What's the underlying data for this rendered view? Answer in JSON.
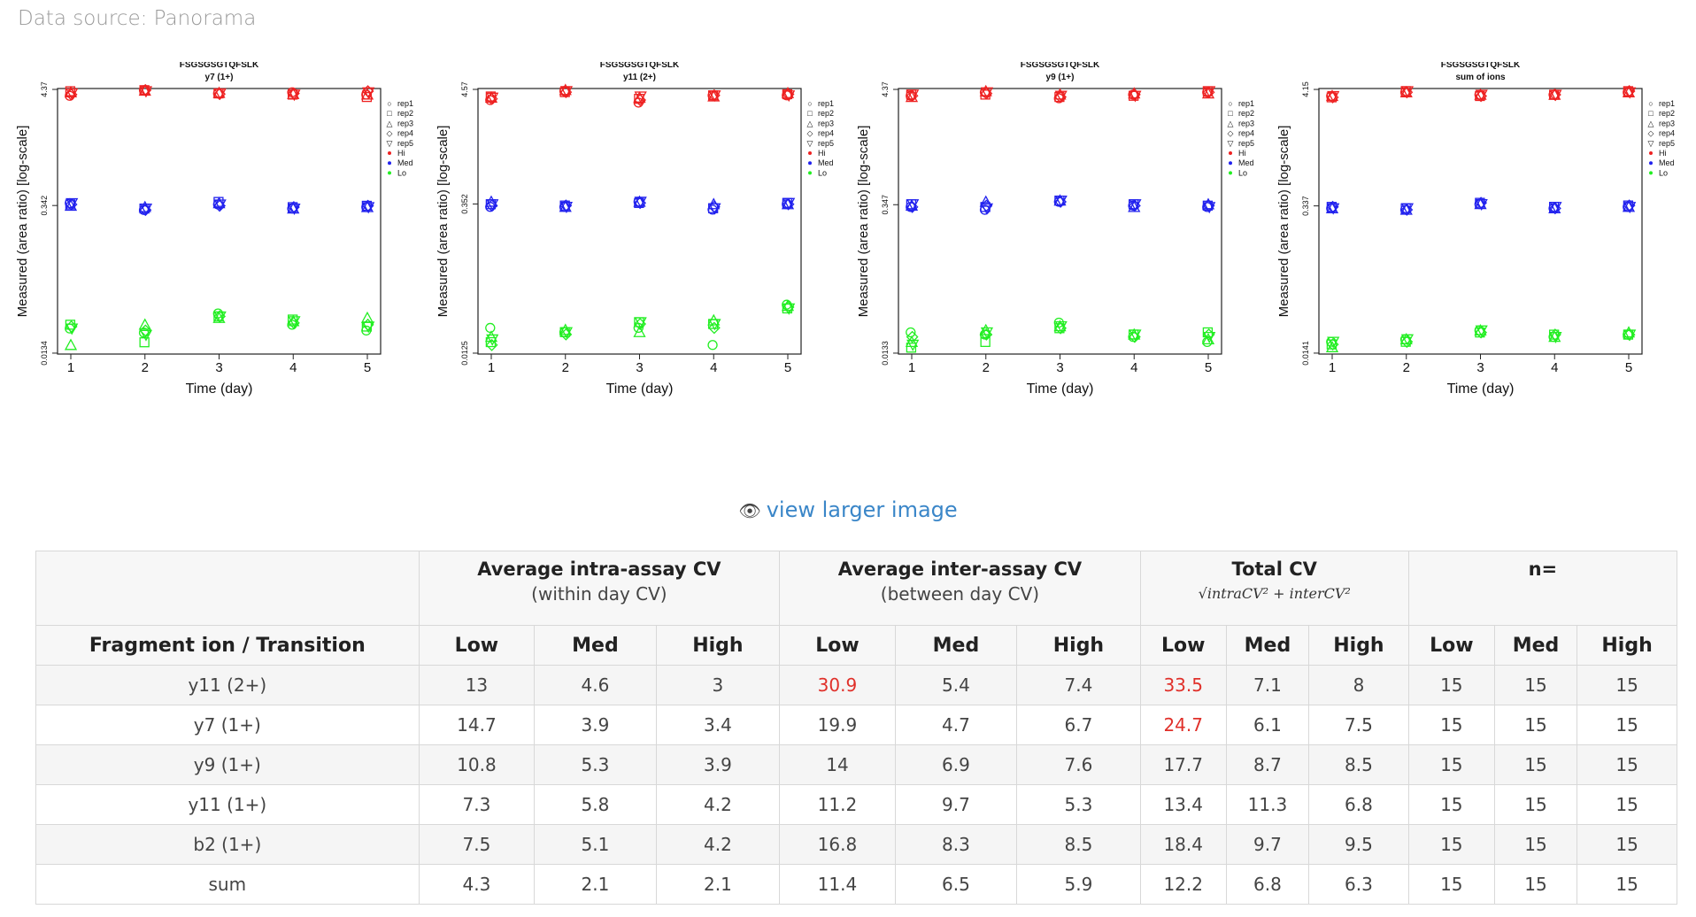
{
  "source_text": "Data source: Panorama",
  "larger_link": "view larger image",
  "colors": {
    "Hi": "#ee2222",
    "Med": "#2222ee",
    "Lo": "#22ee22",
    "link": "#3a86c8",
    "highlight": "#e0302a"
  },
  "chart_data": [
    {
      "type": "scatter",
      "title": "FSGSGSGTQFSLK",
      "subtitle": "y7 (1+)",
      "xlabel": "Time (day)",
      "ylabel": "Measured (area ratio) [log-scale]",
      "yticks": [
        "4.37",
        "0.342",
        "0.0134"
      ],
      "log_scale": true,
      "x_ticks": [
        1,
        2,
        3,
        4,
        5
      ],
      "legend": [
        "rep1",
        "rep2",
        "rep3",
        "rep4",
        "rep5",
        "Hi",
        "Med",
        "Lo"
      ],
      "legend_position": "right",
      "series": [
        {
          "name": "Hi",
          "values": [
            [
              3.8,
              4.3,
              4.0,
              4.1,
              3.9
            ],
            [
              4.2,
              4.3,
              4.0,
              3.9,
              3.7
            ],
            [
              4.1,
              4.25,
              4.05,
              3.95,
              3.9
            ],
            [
              3.9,
              4.3,
              3.95,
              4.0,
              4.2
            ],
            [
              4.0,
              4.2,
              4.0,
              3.9,
              4.1
            ]
          ]
        },
        {
          "name": "Med",
          "values": [
            [
              0.36,
              0.31,
              0.35,
              0.32,
              0.33
            ],
            [
              0.35,
              0.32,
              0.37,
              0.33,
              0.34
            ],
            [
              0.34,
              0.33,
              0.36,
              0.32,
              0.33
            ],
            [
              0.35,
              0.31,
              0.34,
              0.33,
              0.34
            ],
            [
              0.36,
              0.32,
              0.35,
              0.32,
              0.33
            ]
          ]
        },
        {
          "name": "Lo",
          "values": [
            [
              0.023,
              0.021,
              0.032,
              0.025,
              0.022
            ],
            [
              0.025,
              0.017,
              0.03,
              0.028,
              0.024
            ],
            [
              0.016,
              0.025,
              0.029,
              0.027,
              0.029
            ],
            [
              0.024,
              0.022,
              0.03,
              0.026,
              0.025
            ],
            [
              0.023,
              0.02,
              0.03,
              0.027,
              0.024
            ]
          ]
        }
      ]
    },
    {
      "type": "scatter",
      "title": "FSGSGSGTQFSLK",
      "subtitle": "y11 (2+)",
      "xlabel": "Time (day)",
      "ylabel": "Measured (area ratio) [log-scale]",
      "yticks": [
        "4.57",
        "0.352",
        "0.0125"
      ],
      "log_scale": true,
      "x_ticks": [
        1,
        2,
        3,
        4,
        5
      ],
      "legend": [
        "rep1",
        "rep2",
        "rep3",
        "rep4",
        "rep5",
        "Hi",
        "Med",
        "Lo"
      ],
      "legend_position": "right",
      "series": [
        {
          "name": "Hi",
          "values": [
            [
              3.6,
              4.4,
              3.4,
              4.0,
              4.0
            ],
            [
              3.9,
              4.3,
              3.7,
              4.0,
              4.1
            ],
            [
              3.8,
              4.5,
              3.8,
              3.9,
              4.2
            ],
            [
              3.7,
              4.3,
              3.6,
              4.0,
              4.1
            ],
            [
              3.8,
              4.4,
              3.9,
              4.0,
              4.0
            ]
          ]
        },
        {
          "name": "Med",
          "values": [
            [
              0.33,
              0.33,
              0.37,
              0.31,
              0.35
            ],
            [
              0.35,
              0.34,
              0.36,
              0.32,
              0.36
            ],
            [
              0.37,
              0.33,
              0.37,
              0.35,
              0.35
            ],
            [
              0.34,
              0.34,
              0.36,
              0.33,
              0.35
            ],
            [
              0.35,
              0.33,
              0.37,
              0.32,
              0.36
            ]
          ]
        },
        {
          "name": "Lo",
          "values": [
            [
              0.022,
              0.02,
              0.022,
              0.015,
              0.037
            ],
            [
              0.016,
              0.02,
              0.025,
              0.024,
              0.034
            ],
            [
              0.018,
              0.021,
              0.02,
              0.026,
              0.036
            ],
            [
              0.015,
              0.019,
              0.024,
              0.022,
              0.035
            ],
            [
              0.017,
              0.02,
              0.025,
              0.024,
              0.034
            ]
          ]
        }
      ]
    },
    {
      "type": "scatter",
      "title": "FSGSGSGTQFSLK",
      "subtitle": "y9 (1+)",
      "xlabel": "Time (day)",
      "ylabel": "Measured (area ratio) [log-scale]",
      "yticks": [
        "4.37",
        "0.347",
        "0.0133"
      ],
      "log_scale": true,
      "x_ticks": [
        1,
        2,
        3,
        4,
        5
      ],
      "legend": [
        "rep1",
        "rep2",
        "rep3",
        "rep4",
        "rep5",
        "Hi",
        "Med",
        "Lo"
      ],
      "legend_position": "right",
      "series": [
        {
          "name": "Hi",
          "values": [
            [
              3.8,
              4.1,
              3.6,
              3.9,
              4.1
            ],
            [
              3.9,
              3.9,
              3.7,
              3.8,
              4.2
            ],
            [
              3.7,
              4.2,
              3.9,
              4.0,
              4.0
            ],
            [
              3.8,
              4.0,
              3.7,
              3.9,
              4.1
            ],
            [
              3.9,
              4.1,
              3.8,
              3.8,
              4.2
            ]
          ]
        },
        {
          "name": "Med",
          "values": [
            [
              0.33,
              0.31,
              0.37,
              0.34,
              0.33
            ],
            [
              0.35,
              0.33,
              0.38,
              0.35,
              0.34
            ],
            [
              0.34,
              0.37,
              0.38,
              0.33,
              0.35
            ],
            [
              0.33,
              0.34,
              0.37,
              0.34,
              0.34
            ],
            [
              0.35,
              0.32,
              0.38,
              0.35,
              0.33
            ]
          ]
        },
        {
          "name": "Lo",
          "values": [
            [
              0.021,
              0.02,
              0.026,
              0.019,
              0.017
            ],
            [
              0.015,
              0.017,
              0.023,
              0.02,
              0.021
            ],
            [
              0.017,
              0.022,
              0.024,
              0.02,
              0.018
            ],
            [
              0.019,
              0.02,
              0.023,
              0.019,
              0.02
            ],
            [
              0.016,
              0.021,
              0.024,
              0.02,
              0.019
            ]
          ]
        }
      ]
    },
    {
      "type": "scatter",
      "title": "FSGSGSGTQFSLK",
      "subtitle": "sum of ions",
      "xlabel": "Time (day)",
      "ylabel": "Measured (area ratio) [log-scale]",
      "yticks": [
        "4.15",
        "0.337",
        "0.0141"
      ],
      "log_scale": true,
      "x_ticks": [
        1,
        2,
        3,
        4,
        5
      ],
      "legend": [
        "rep1",
        "rep2",
        "rep3",
        "rep4",
        "rep5",
        "Hi",
        "Med",
        "Lo"
      ],
      "legend_position": "right",
      "series": [
        {
          "name": "Hi",
          "values": [
            [
              3.6,
              3.9,
              3.7,
              3.7,
              3.9
            ],
            [
              3.5,
              4.0,
              3.6,
              3.7,
              4.0
            ],
            [
              3.6,
              3.9,
              3.7,
              3.7,
              3.9
            ],
            [
              3.5,
              3.9,
              3.6,
              3.7,
              4.0
            ],
            [
              3.6,
              4.0,
              3.7,
              3.7,
              3.9
            ]
          ]
        },
        {
          "name": "Med",
          "values": [
            [
              0.32,
              0.31,
              0.35,
              0.32,
              0.33
            ],
            [
              0.33,
              0.32,
              0.36,
              0.33,
              0.34
            ],
            [
              0.32,
              0.31,
              0.35,
              0.32,
              0.33
            ],
            [
              0.33,
              0.31,
              0.36,
              0.32,
              0.34
            ],
            [
              0.32,
              0.32,
              0.35,
              0.33,
              0.33
            ]
          ]
        },
        {
          "name": "Lo",
          "values": [
            [
              0.018,
              0.019,
              0.023,
              0.02,
              0.021
            ],
            [
              0.017,
              0.018,
              0.022,
              0.021,
              0.021
            ],
            [
              0.016,
              0.019,
              0.023,
              0.02,
              0.022
            ],
            [
              0.017,
              0.018,
              0.022,
              0.021,
              0.021
            ],
            [
              0.018,
              0.019,
              0.023,
              0.02,
              0.021
            ]
          ]
        }
      ]
    }
  ],
  "table": {
    "groups": [
      {
        "title": "",
        "sub": ""
      },
      {
        "title": "Average intra-assay CV",
        "sub": "(within day CV)"
      },
      {
        "title": "Average inter-assay CV",
        "sub": "(between day CV)"
      },
      {
        "title": "Total CV",
        "sub": "√intraCV² + interCV²"
      },
      {
        "title": "n=",
        "sub": ""
      }
    ],
    "columns": [
      "Fragment ion / Transition",
      "Low",
      "Med",
      "High",
      "Low",
      "Med",
      "High",
      "Low",
      "Med",
      "High",
      "Low",
      "Med",
      "High"
    ],
    "rows": [
      {
        "cells": [
          "y11 (2+)",
          "13",
          "4.6",
          "3",
          "30.9",
          "5.4",
          "7.4",
          "33.5",
          "7.1",
          "8",
          "15",
          "15",
          "15"
        ],
        "red": [
          4,
          7
        ]
      },
      {
        "cells": [
          "y7 (1+)",
          "14.7",
          "3.9",
          "3.4",
          "19.9",
          "4.7",
          "6.7",
          "24.7",
          "6.1",
          "7.5",
          "15",
          "15",
          "15"
        ],
        "red": [
          7
        ]
      },
      {
        "cells": [
          "y9 (1+)",
          "10.8",
          "5.3",
          "3.9",
          "14",
          "6.9",
          "7.6",
          "17.7",
          "8.7",
          "8.5",
          "15",
          "15",
          "15"
        ],
        "red": []
      },
      {
        "cells": [
          "y11 (1+)",
          "7.3",
          "5.8",
          "4.2",
          "11.2",
          "9.7",
          "5.3",
          "13.4",
          "11.3",
          "6.8",
          "15",
          "15",
          "15"
        ],
        "red": []
      },
      {
        "cells": [
          "b2 (1+)",
          "7.5",
          "5.1",
          "4.2",
          "16.8",
          "8.3",
          "8.5",
          "18.4",
          "9.7",
          "9.5",
          "15",
          "15",
          "15"
        ],
        "red": []
      },
      {
        "cells": [
          "sum",
          "4.3",
          "2.1",
          "2.1",
          "11.4",
          "6.5",
          "5.9",
          "12.2",
          "6.8",
          "6.3",
          "15",
          "15",
          "15"
        ],
        "red": []
      }
    ]
  }
}
